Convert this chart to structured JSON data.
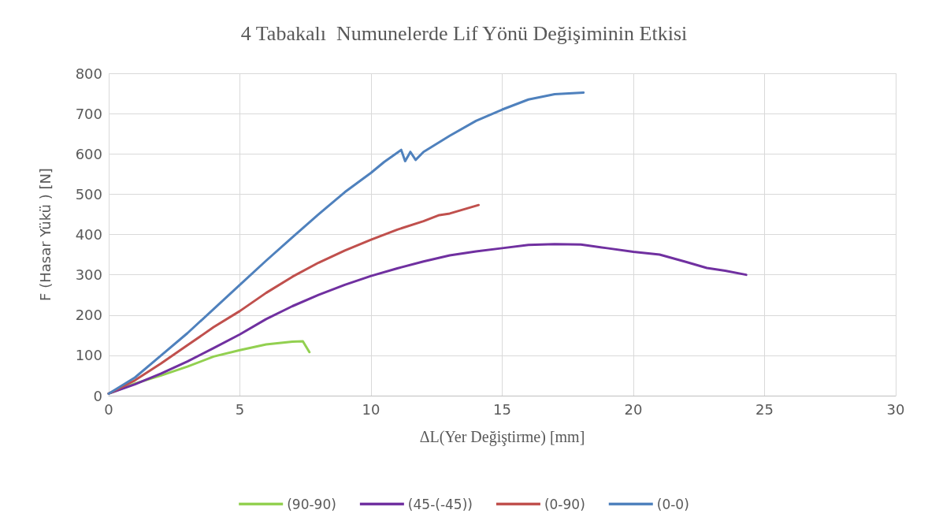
{
  "chart_data": {
    "type": "line",
    "title": "4 Tabakalı  Numunelerde Lif Yönü Değişiminin Etkisi",
    "xlabel": "ΔL(Yer Değiştirme) [mm]",
    "ylabel": "F (Hasar Yükü ) [N]",
    "xlim": [
      0,
      30
    ],
    "xticks": [
      0,
      5,
      10,
      15,
      20,
      25,
      30
    ],
    "ylim": [
      0,
      800
    ],
    "yticks": [
      0,
      100,
      200,
      300,
      400,
      500,
      600,
      700,
      800
    ],
    "grid": true,
    "legend": "bottom",
    "marker": "none",
    "line_style": "solid",
    "series": [
      {
        "name": "(90-90)",
        "color": "#92d050",
        "x": [
          0,
          1,
          2,
          3,
          4,
          5,
          6,
          7,
          7.4,
          7.65
        ],
        "values": [
          5,
          30,
          50,
          72,
          97,
          113,
          127,
          134,
          135,
          108
        ]
      },
      {
        "name": "(45-(-45))",
        "color": "#7030a0",
        "x": [
          0,
          1,
          2,
          3,
          4,
          5,
          6,
          7,
          8,
          9,
          10,
          11,
          12,
          13,
          14,
          15,
          16,
          17,
          18,
          19,
          20,
          21,
          22,
          22.8,
          23.5,
          24.3
        ],
        "values": [
          5,
          28,
          55,
          85,
          118,
          152,
          190,
          222,
          250,
          275,
          297,
          316,
          333,
          348,
          358,
          366,
          374,
          376,
          375,
          366,
          357,
          350,
          332,
          317,
          310,
          300
        ]
      },
      {
        "name": "(0-90)",
        "color": "#c0504d",
        "x": [
          0,
          1,
          2,
          3,
          4,
          5,
          6,
          7,
          8,
          9,
          10,
          11,
          12,
          12.6,
          13,
          14.1
        ],
        "values": [
          5,
          38,
          80,
          125,
          170,
          210,
          255,
          295,
          330,
          360,
          387,
          412,
          433,
          448,
          452,
          473
        ]
      },
      {
        "name": "(0-0)",
        "color": "#4f81bd",
        "x": [
          0,
          1,
          2,
          3,
          4,
          5,
          6,
          7,
          8,
          9,
          10,
          10.5,
          11,
          11.15,
          11.3,
          11.5,
          11.7,
          12,
          13,
          14,
          15,
          16,
          17,
          18.1
        ],
        "values": [
          5,
          45,
          100,
          155,
          215,
          275,
          335,
          393,
          450,
          505,
          553,
          580,
          603,
          610,
          582,
          605,
          585,
          605,
          645,
          682,
          710,
          735,
          748,
          752
        ]
      }
    ]
  }
}
